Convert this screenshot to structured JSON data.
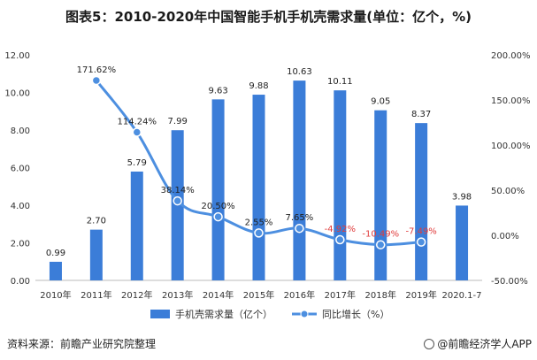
{
  "title": "图表5：2010-2020年中国智能手机手机壳需求量(单位：亿个，%)",
  "source": "资料来源：前瞻产业研究院整理",
  "brand": "@前瞻经济学人APP",
  "chart_data": {
    "type": "bar+line",
    "categories": [
      "2010年",
      "2011年",
      "2012年",
      "2013年",
      "2014年",
      "2015年",
      "2016年",
      "2017年",
      "2018年",
      "2019年",
      "2020.1-7"
    ],
    "series": [
      {
        "name": "手机壳需求量（亿个）",
        "type": "bar",
        "axis": "left",
        "values": [
          0.99,
          2.7,
          5.79,
          7.99,
          9.63,
          9.88,
          10.63,
          10.11,
          9.05,
          8.37,
          3.98
        ],
        "labels": [
          "0.99",
          "2.70",
          "5.79",
          "7.99",
          "9.63",
          "9.88",
          "10.63",
          "10.11",
          "9.05",
          "8.37",
          "3.98"
        ],
        "color": "#3b7dd8"
      },
      {
        "name": "同比增长（%）",
        "type": "line",
        "axis": "right",
        "values": [
          null,
          171.62,
          114.24,
          38.14,
          20.5,
          2.55,
          7.65,
          -4.92,
          -10.49,
          -7.49,
          null
        ],
        "labels": [
          "",
          "171.62%",
          "114.24%",
          "38.14%",
          "20.50%",
          "2.55%",
          "7.65%",
          "-4.92%",
          "-10.49%",
          "-7.49%",
          ""
        ],
        "color": "#4d8fe0",
        "negative_label_color": "#e03c3c"
      }
    ],
    "left_axis": {
      "min": 0,
      "max": 12,
      "ticks": [
        "0.00",
        "2.00",
        "4.00",
        "6.00",
        "8.00",
        "10.00",
        "12.00"
      ],
      "tick_values": [
        0,
        2,
        4,
        6,
        8,
        10,
        12
      ]
    },
    "right_axis": {
      "min": -50,
      "max": 200,
      "ticks": [
        "-50.00%",
        "0.00%",
        "50.00%",
        "100.00%",
        "150.00%",
        "200.00%"
      ],
      "tick_values": [
        -50,
        0,
        50,
        100,
        150,
        200
      ]
    },
    "legend": {
      "position": "bottom",
      "items": [
        "手机壳需求量（亿个）",
        "同比增长（%）"
      ]
    }
  }
}
